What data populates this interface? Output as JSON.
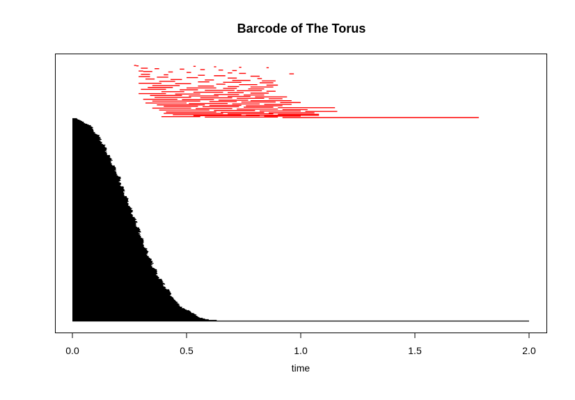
{
  "chart_data": {
    "type": "barcode",
    "title": "Barcode of The Torus",
    "xlabel": "time",
    "xlim": [
      -0.07,
      2.08
    ],
    "x_ticks": [
      0.0,
      0.5,
      1.0,
      1.5,
      2.0
    ],
    "x_tick_labels": [
      "0.0",
      "0.5",
      "1.0",
      "1.5",
      "2.0"
    ],
    "y_axis_shown": false,
    "grid": false,
    "legend": "none",
    "colors": {
      "dimension_0": "#000000",
      "dimension_1": "#ff0000"
    },
    "dimension_0_profile": {
      "description_points": [
        [
          0.0,
          2.0
        ],
        [
          0.02,
          0.998
        ],
        [
          0.05,
          0.985
        ],
        [
          0.08,
          0.96
        ],
        [
          0.1,
          0.935
        ],
        [
          0.13,
          0.885
        ],
        [
          0.16,
          0.815
        ],
        [
          0.2,
          0.72
        ],
        [
          0.24,
          0.6
        ],
        [
          0.28,
          0.48
        ],
        [
          0.31,
          0.39
        ],
        [
          0.34,
          0.305
        ],
        [
          0.37,
          0.235
        ],
        [
          0.4,
          0.18
        ],
        [
          0.43,
          0.135
        ],
        [
          0.46,
          0.085
        ],
        [
          0.5,
          0.055
        ],
        [
          0.53,
          0.035
        ],
        [
          0.56,
          0.018
        ],
        [
          0.6,
          0.006
        ],
        [
          0.65,
          0.002
        ],
        [
          0.71,
          0.001
        ],
        [
          2.0,
          0.0
        ]
      ]
    },
    "dimension_1_bars": [
      [
        0.27,
        0.28
      ],
      [
        0.28,
        0.29
      ],
      [
        0.53,
        0.54
      ],
      [
        0.62,
        0.63
      ],
      [
        0.73,
        0.74
      ],
      [
        0.85,
        0.86
      ],
      [
        0.3,
        0.33
      ],
      [
        0.36,
        0.38
      ],
      [
        0.47,
        0.49
      ],
      [
        0.56,
        0.58
      ],
      [
        0.64,
        0.66
      ],
      [
        0.7,
        0.72
      ],
      [
        0.29,
        0.31
      ],
      [
        0.31,
        0.35
      ],
      [
        0.42,
        0.44
      ],
      [
        0.5,
        0.52
      ],
      [
        0.68,
        0.7
      ],
      [
        0.73,
        0.76
      ],
      [
        0.95,
        0.97
      ],
      [
        0.3,
        0.34
      ],
      [
        0.4,
        0.42
      ],
      [
        0.55,
        0.58
      ],
      [
        0.62,
        0.67
      ],
      [
        0.78,
        0.82
      ],
      [
        0.29,
        0.34
      ],
      [
        0.37,
        0.42
      ],
      [
        0.5,
        0.55
      ],
      [
        0.68,
        0.72
      ],
      [
        0.81,
        0.83
      ],
      [
        0.32,
        0.36
      ],
      [
        0.43,
        0.48
      ],
      [
        0.58,
        0.62
      ],
      [
        0.7,
        0.78
      ],
      [
        0.83,
        0.89
      ],
      [
        0.38,
        0.45
      ],
      [
        0.55,
        0.6
      ],
      [
        0.66,
        0.74
      ],
      [
        0.82,
        0.88
      ],
      [
        0.29,
        0.39
      ],
      [
        0.45,
        0.52
      ],
      [
        0.63,
        0.67
      ],
      [
        0.73,
        0.81
      ],
      [
        0.85,
        0.9
      ],
      [
        0.35,
        0.47
      ],
      [
        0.55,
        0.62
      ],
      [
        0.68,
        0.73
      ],
      [
        0.78,
        0.88
      ],
      [
        0.33,
        0.44
      ],
      [
        0.5,
        0.63
      ],
      [
        0.66,
        0.72
      ],
      [
        0.77,
        0.84
      ],
      [
        0.3,
        0.41
      ],
      [
        0.47,
        0.55
      ],
      [
        0.58,
        0.71
      ],
      [
        0.72,
        0.83
      ],
      [
        0.85,
        0.89
      ],
      [
        0.39,
        0.49
      ],
      [
        0.53,
        0.66
      ],
      [
        0.68,
        0.75
      ],
      [
        0.78,
        0.86
      ],
      [
        0.29,
        0.41
      ],
      [
        0.45,
        0.56
      ],
      [
        0.62,
        0.73
      ],
      [
        0.75,
        0.84
      ],
      [
        0.34,
        0.48
      ],
      [
        0.51,
        0.64
      ],
      [
        0.68,
        0.78
      ],
      [
        0.8,
        0.94
      ],
      [
        0.36,
        0.52
      ],
      [
        0.56,
        0.7
      ],
      [
        0.72,
        0.84
      ],
      [
        0.86,
        0.92
      ],
      [
        0.31,
        0.46
      ],
      [
        0.48,
        0.62
      ],
      [
        0.64,
        0.77
      ],
      [
        0.78,
        0.96
      ],
      [
        0.35,
        0.56
      ],
      [
        0.6,
        0.72
      ],
      [
        0.74,
        0.89
      ],
      [
        0.91,
        1.0
      ],
      [
        0.32,
        0.5
      ],
      [
        0.51,
        0.68
      ],
      [
        0.7,
        0.82
      ],
      [
        0.84,
        0.96
      ],
      [
        0.37,
        0.58
      ],
      [
        0.6,
        0.74
      ],
      [
        0.76,
        0.92
      ],
      [
        0.4,
        0.55
      ],
      [
        0.57,
        0.73
      ],
      [
        0.75,
        0.88
      ],
      [
        0.9,
        1.15
      ],
      [
        0.35,
        0.52
      ],
      [
        0.54,
        0.7
      ],
      [
        0.72,
        0.9
      ],
      [
        0.92,
        1.03
      ],
      [
        0.38,
        0.6
      ],
      [
        0.62,
        0.8
      ],
      [
        0.82,
        1.0
      ],
      [
        1.02,
        1.16
      ],
      [
        0.41,
        0.63
      ],
      [
        0.65,
        0.84
      ],
      [
        0.86,
        1.06
      ],
      [
        0.4,
        0.66
      ],
      [
        0.68,
        0.88
      ],
      [
        0.9,
        1.08
      ],
      [
        0.44,
        0.74
      ],
      [
        0.76,
        1.08
      ],
      [
        0.53,
        0.82
      ],
      [
        0.84,
        1.0
      ],
      [
        0.39,
        0.56
      ],
      [
        0.58,
        0.9
      ],
      [
        0.92,
        1.78
      ]
    ]
  }
}
